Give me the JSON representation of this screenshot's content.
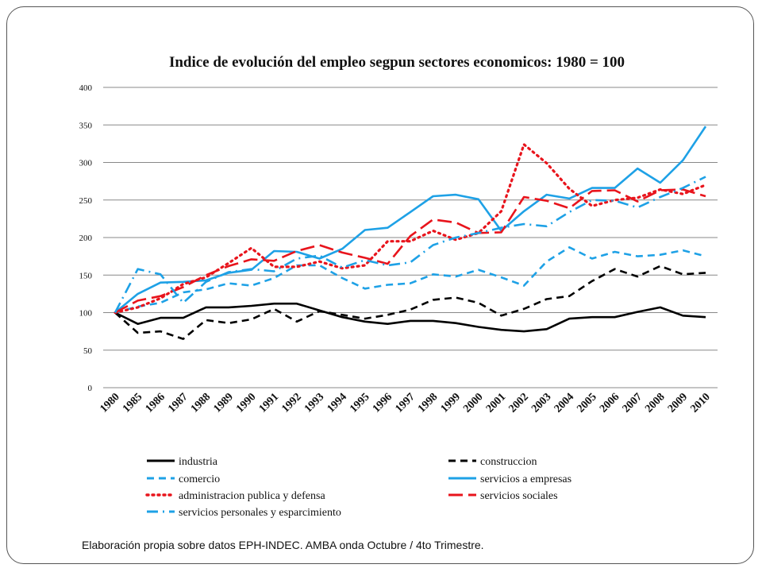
{
  "source_note": "Elaboración propia sobre datos EPH-INDEC. AMBA onda Octubre / 4to Trimestre.",
  "chart_data": {
    "type": "line",
    "title": "Indice de evolución del empleo segpun sectores economicos: 1980 = 100",
    "xlabel": "",
    "ylabel": "",
    "ylim": [
      0,
      400
    ],
    "yticks": [
      0,
      50,
      100,
      150,
      200,
      250,
      300,
      350,
      400
    ],
    "grid": "horizontal",
    "legend_position": "bottom",
    "categories": [
      "1980",
      "1985",
      "1986",
      "1987",
      "1988",
      "1989",
      "1990",
      "1991",
      "1992",
      "1993",
      "1994",
      "1995",
      "1996",
      "1997",
      "1998",
      "1999",
      "2000",
      "2001",
      "2002",
      "2003",
      "2004",
      "2005",
      "2006",
      "2007",
      "2008",
      "2009",
      "2010"
    ],
    "series": [
      {
        "name": "industria",
        "color": "#000000",
        "style": "solid",
        "values": [
          100,
          85,
          93,
          93,
          107,
          107,
          109,
          112,
          112,
          103,
          94,
          88,
          85,
          89,
          89,
          86,
          81,
          77,
          75,
          78,
          92,
          94,
          94,
          101,
          107,
          96,
          94
        ]
      },
      {
        "name": "construccion",
        "color": "#000000",
        "style": "dash",
        "values": [
          100,
          73,
          75,
          65,
          90,
          86,
          91,
          105,
          88,
          102,
          97,
          92,
          97,
          104,
          117,
          120,
          113,
          96,
          105,
          118,
          122,
          142,
          158,
          148,
          162,
          151,
          153
        ]
      },
      {
        "name": "comercio",
        "color": "#1ea1e6",
        "style": "dash",
        "values": [
          100,
          108,
          113,
          127,
          131,
          139,
          136,
          146,
          163,
          163,
          146,
          132,
          137,
          139,
          151,
          148,
          157,
          147,
          136,
          168,
          187,
          172,
          181,
          175,
          177,
          183,
          175
        ]
      },
      {
        "name": "servicios a empresas",
        "color": "#1ea1e6",
        "style": "solid",
        "values": [
          100,
          125,
          140,
          141,
          143,
          153,
          157,
          182,
          181,
          172,
          185,
          210,
          213,
          234,
          255,
          257,
          251,
          209,
          235,
          257,
          252,
          266,
          266,
          292,
          273,
          303,
          348
        ]
      },
      {
        "name": "administracion publica y defensa",
        "color": "#e8141c",
        "style": "dot",
        "values": [
          100,
          107,
          119,
          138,
          147,
          166,
          186,
          161,
          161,
          168,
          159,
          163,
          195,
          195,
          209,
          197,
          206,
          235,
          324,
          299,
          265,
          242,
          250,
          253,
          264,
          258,
          270
        ]
      },
      {
        "name": "servicios sociales",
        "color": "#e8141c",
        "style": "longdash",
        "values": [
          100,
          116,
          122,
          134,
          150,
          162,
          171,
          169,
          182,
          190,
          180,
          173,
          165,
          202,
          224,
          220,
          206,
          207,
          254,
          249,
          239,
          262,
          263,
          248,
          263,
          264,
          255
        ]
      },
      {
        "name": "servicios personales y esparcimiento",
        "color": "#1ea1e6",
        "style": "dashdot",
        "values": [
          100,
          158,
          151,
          113,
          141,
          154,
          158,
          155,
          172,
          176,
          160,
          170,
          163,
          167,
          190,
          200,
          206,
          213,
          218,
          215,
          234,
          250,
          249,
          240,
          254,
          266,
          281
        ]
      }
    ]
  }
}
